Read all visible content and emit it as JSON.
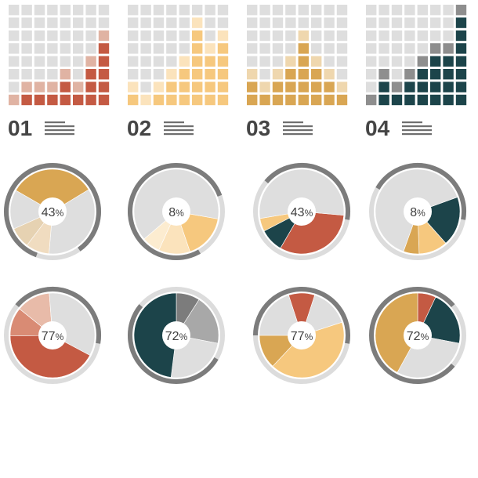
{
  "colors": {
    "empty": "#dedede",
    "track": "#dcdcdc",
    "arc": "#7c7c7c",
    "center": "#ffffff",
    "label": "#454545",
    "text_lines": "#6e6e6e"
  },
  "chart_data": [
    {
      "type": "waffle",
      "label": "01",
      "grid": 8,
      "bar_heights": [
        1,
        2,
        2,
        2,
        3,
        2,
        4,
        6
      ],
      "color_main": "#c45a43",
      "color_light": "#e0b3a3"
    },
    {
      "type": "waffle",
      "label": "02",
      "grid": 8,
      "bar_heights": [
        2,
        1,
        2,
        3,
        4,
        7,
        5,
        6
      ],
      "color_main": "#f6c87e",
      "color_light": "#fbe3bc"
    },
    {
      "type": "waffle",
      "label": "03",
      "grid": 8,
      "bar_heights": [
        3,
        2,
        3,
        4,
        6,
        4,
        3,
        2
      ],
      "color_main": "#d9a653",
      "color_light": "#efd7ae"
    },
    {
      "type": "waffle",
      "label": "04",
      "grid": 8,
      "bar_heights": [
        1,
        3,
        2,
        3,
        4,
        5,
        5,
        8
      ],
      "color_main": "#1c444a",
      "color_light": "#8e8e8e"
    },
    {
      "type": "pie",
      "value_text": "43",
      "suffix": "%",
      "ring_start": 200,
      "ring_end": 505,
      "slices": [
        {
          "value": 0.33,
          "color": "#d9a653"
        },
        {
          "value": 0.35,
          "color": "#dedede"
        },
        {
          "value": 0.09,
          "color": "#f0dcc0"
        },
        {
          "value": 0.08,
          "color": "#e6d2b2"
        },
        {
          "value": 0.15,
          "color": "#dedede"
        }
      ],
      "slice_start": -60
    },
    {
      "type": "pie",
      "value_text": "8",
      "suffix": "%",
      "ring_start": 150,
      "ring_end": 430,
      "slices": [
        {
          "value": 0.17,
          "color": "#f6c87e"
        },
        {
          "value": 0.12,
          "color": "#fbe3bc"
        },
        {
          "value": 0.07,
          "color": "#fcecd0"
        },
        {
          "value": 0.64,
          "color": "#dedede"
        }
      ],
      "slice_start": 100
    },
    {
      "type": "pie",
      "value_text": "43",
      "suffix": "%",
      "ring_start": 310,
      "ring_end": 460,
      "slices": [
        {
          "value": 0.32,
          "color": "#c45a43"
        },
        {
          "value": 0.09,
          "color": "#1c444a"
        },
        {
          "value": 0.05,
          "color": "#f6c87e"
        },
        {
          "value": 0.54,
          "color": "#dedede"
        }
      ],
      "slice_start": 95
    },
    {
      "type": "pie",
      "value_text": "8",
      "suffix": "%",
      "ring_start": 300,
      "ring_end": 460,
      "slices": [
        {
          "value": 0.19,
          "color": "#1c444a"
        },
        {
          "value": 0.11,
          "color": "#f6c87e"
        },
        {
          "value": 0.06,
          "color": "#d9a653"
        },
        {
          "value": 0.64,
          "color": "#dedede"
        }
      ],
      "slice_start": 70
    },
    {
      "type": "pie",
      "value_text": "77",
      "suffix": "%",
      "ring_start": 310,
      "ring_end": 460,
      "slices": [
        {
          "value": 0.42,
          "color": "#c45a43"
        },
        {
          "value": 0.11,
          "color": "#d98b74"
        },
        {
          "value": 0.13,
          "color": "#e8bba9"
        },
        {
          "value": 0.34,
          "color": "#dedede"
        }
      ],
      "slice_start": 118
    },
    {
      "type": "pie",
      "value_text": "72",
      "suffix": "%",
      "ring_start": 120,
      "ring_end": 310,
      "slices": [
        {
          "value": 0.09,
          "color": "#7c7c7c"
        },
        {
          "value": 0.19,
          "color": "#a8a8a8"
        },
        {
          "value": 0.24,
          "color": "#dedede"
        },
        {
          "value": 0.48,
          "color": "#1c444a"
        }
      ],
      "slice_start": 0
    },
    {
      "type": "pie",
      "value_text": "77",
      "suffix": "%",
      "ring_start": 270,
      "ring_end": 460,
      "slices": [
        {
          "value": 0.1,
          "color": "#c45a43"
        },
        {
          "value": 0.15,
          "color": "#dedede"
        },
        {
          "value": 0.42,
          "color": "#f6c87e"
        },
        {
          "value": 0.13,
          "color": "#d9a653"
        },
        {
          "value": 0.2,
          "color": "#dedede"
        }
      ],
      "slice_start": -18
    },
    {
      "type": "pie",
      "value_text": "72",
      "suffix": "%",
      "ring_start": 130,
      "ring_end": 410,
      "slices": [
        {
          "value": 0.07,
          "color": "#c45a43"
        },
        {
          "value": 0.21,
          "color": "#1c444a"
        },
        {
          "value": 0.3,
          "color": "#dedede"
        },
        {
          "value": 0.42,
          "color": "#d9a653"
        }
      ],
      "slice_start": 0
    }
  ]
}
